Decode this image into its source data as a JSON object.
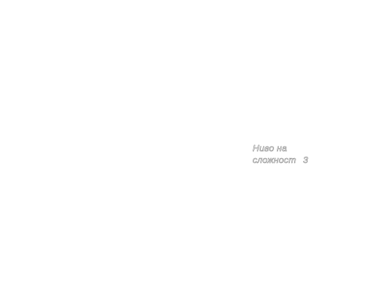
{
  "difficulty": {
    "label_line1": "Ниво на",
    "label_line2": "сложност",
    "value": "3"
  }
}
